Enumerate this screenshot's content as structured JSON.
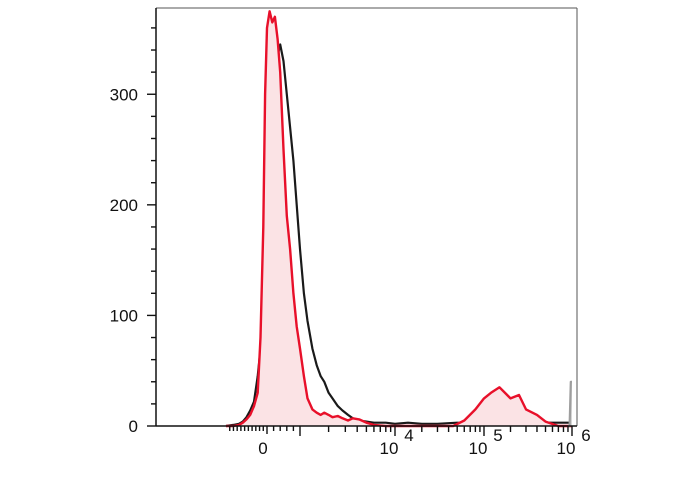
{
  "chart_data": {
    "type": "area",
    "title": "",
    "xlabel": "",
    "ylabel": "",
    "x_scale": "biexponential",
    "x_tick_labels": [
      {
        "base": "0",
        "exp": ""
      },
      {
        "base": "10",
        "exp": "4"
      },
      {
        "base": "10",
        "exp": "5"
      },
      {
        "base": "10",
        "exp": "6"
      }
    ],
    "y_tick_labels": [
      "0",
      "100",
      "200",
      "300"
    ],
    "ylim": [
      0,
      378
    ],
    "grid": false,
    "series": [
      {
        "color": "#1a1a1a",
        "fill": "none",
        "style": "line",
        "x": [
          -2200,
          -1800,
          -1500,
          -1300,
          -1100,
          -900,
          -700,
          -500,
          -350,
          -200,
          -100,
          0,
          80,
          160,
          240,
          320,
          400,
          500,
          600,
          700,
          800,
          900,
          1000,
          1100,
          1200,
          1350,
          1500,
          1650,
          1800,
          2000,
          2200,
          2500,
          2800,
          3200,
          3600,
          4200,
          5000,
          6000,
          8000,
          10000,
          14000,
          20000,
          30000,
          50000,
          80000,
          120000,
          200000,
          300000,
          500000,
          800000,
          1000000
        ],
        "y": [
          0,
          1,
          2,
          4,
          8,
          14,
          22,
          45,
          70,
          110,
          160,
          200,
          240,
          275,
          310,
          335,
          345,
          330,
          300,
          270,
          240,
          200,
          160,
          120,
          95,
          70,
          55,
          45,
          40,
          30,
          25,
          18,
          14,
          10,
          7,
          5,
          4,
          3,
          3,
          2,
          3,
          2,
          2,
          3,
          2,
          3,
          2,
          2,
          3,
          3,
          3
        ]
      },
      {
        "color": "#e8102a",
        "fill": "#fbe3e5",
        "style": "area",
        "x": [
          -2200,
          -1800,
          -1500,
          -1300,
          -1100,
          -900,
          -700,
          -500,
          -350,
          -200,
          -100,
          0,
          80,
          160,
          240,
          320,
          400,
          500,
          600,
          700,
          800,
          900,
          1000,
          1100,
          1200,
          1350,
          1500,
          1650,
          1800,
          2000,
          2200,
          2500,
          2800,
          3200,
          3600,
          4200,
          5000,
          6000,
          8000,
          10000,
          14000,
          20000,
          30000,
          45000,
          60000,
          80000,
          100000,
          120000,
          150000,
          200000,
          250000,
          300000,
          400000,
          500000,
          700000,
          1000000
        ],
        "y": [
          0,
          0,
          1,
          3,
          6,
          10,
          18,
          30,
          80,
          180,
          300,
          360,
          375,
          365,
          370,
          350,
          320,
          250,
          190,
          160,
          120,
          90,
          70,
          45,
          25,
          15,
          12,
          10,
          12,
          10,
          8,
          9,
          7,
          5,
          7,
          6,
          3,
          1,
          0,
          0,
          0,
          0,
          0,
          0,
          5,
          15,
          25,
          30,
          35,
          25,
          28,
          15,
          10,
          4,
          0,
          0
        ]
      },
      {
        "color": "#9e9e9e",
        "fill": "#d6d6d6",
        "style": "area",
        "x": [
          900000,
          940000,
          970000,
          1000000
        ],
        "y": [
          0,
          0,
          40,
          40
        ]
      }
    ]
  }
}
